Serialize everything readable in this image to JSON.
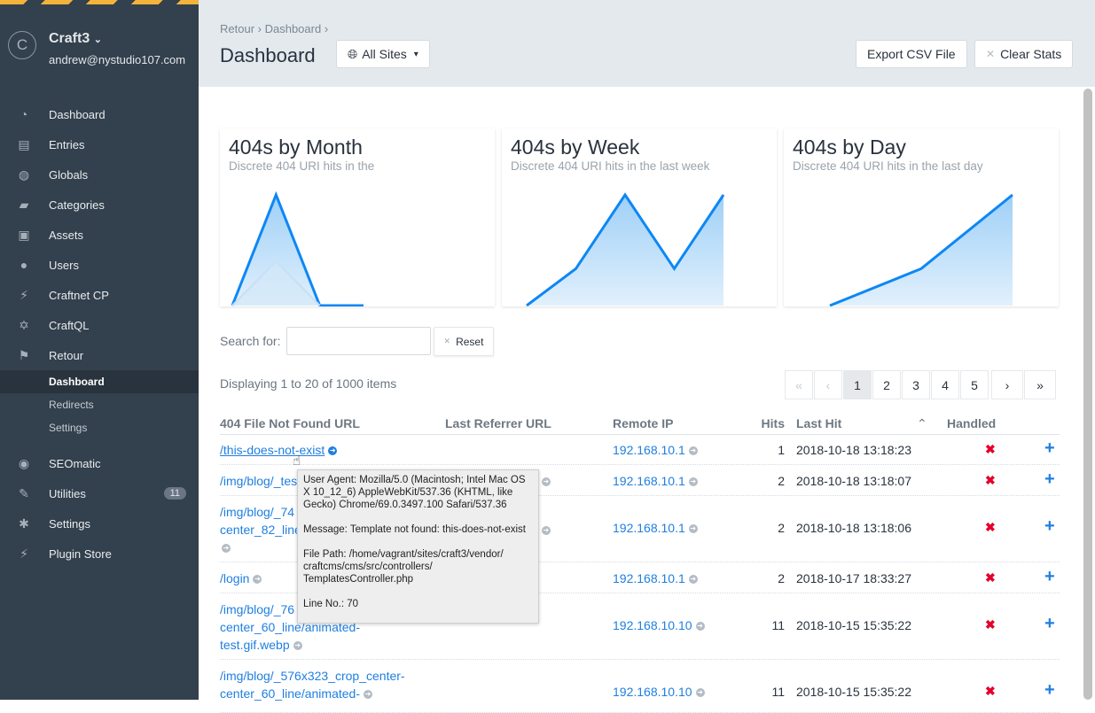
{
  "sidebar": {
    "site_name": "Craft3",
    "user_email": "andrew@nystudio107.com",
    "logo_letter": "C",
    "items": [
      {
        "label": "Dashboard",
        "icon": "gauge-icon"
      },
      {
        "label": "Entries",
        "icon": "newspaper-icon"
      },
      {
        "label": "Globals",
        "icon": "globe-icon"
      },
      {
        "label": "Categories",
        "icon": "folder-icon"
      },
      {
        "label": "Assets",
        "icon": "image-icon"
      },
      {
        "label": "Users",
        "icon": "users-icon"
      },
      {
        "label": "Craftnet CP",
        "icon": "plug-icon"
      },
      {
        "label": "CraftQL",
        "icon": "graphql-icon"
      },
      {
        "label": "Retour",
        "icon": "flag-icon"
      }
    ],
    "sub_items": [
      {
        "label": "Dashboard"
      },
      {
        "label": "Redirects"
      },
      {
        "label": "Settings"
      }
    ],
    "items2": [
      {
        "label": "SEOmatic",
        "icon": "seomatic-icon"
      },
      {
        "label": "Utilities",
        "icon": "wrench-icon",
        "badge": "11"
      },
      {
        "label": "Settings",
        "icon": "gear-icon"
      },
      {
        "label": "Plugin Store",
        "icon": "plug-icon"
      }
    ]
  },
  "header": {
    "breadcrumb": [
      "Retour",
      "Dashboard"
    ],
    "title": "Dashboard",
    "site_select": "All Sites",
    "export_label": "Export CSV File",
    "clear_label": "Clear Stats"
  },
  "chart_data": [
    {
      "type": "area",
      "title": "404s by Month",
      "subtitle": "Discrete 404 URI hits in the",
      "series": [
        {
          "values": [
            0,
            5,
            0,
            0
          ],
          "color": "#0d87f5"
        },
        {
          "values": [
            0,
            2,
            0
          ],
          "color": "#c9dff2"
        }
      ]
    },
    {
      "type": "area",
      "title": "404s by Week",
      "subtitle": "Discrete 404 URI hits in the last week",
      "series": [
        {
          "values": [
            0,
            1,
            3,
            1,
            3
          ],
          "color": "#0d87f5"
        }
      ]
    },
    {
      "type": "area",
      "title": "404s by Day",
      "subtitle": "Discrete 404 URI hits in the last day",
      "series": [
        {
          "values": [
            0,
            1,
            3
          ],
          "color": "#0d87f5"
        }
      ]
    }
  ],
  "search": {
    "label": "Search for:",
    "value": "",
    "reset_label": "Reset"
  },
  "display": "Displaying 1 to 20 of 1000 items",
  "pager": [
    "«",
    "‹",
    "1",
    "2",
    "3",
    "4",
    "5",
    "›",
    "»"
  ],
  "table": {
    "columns": [
      "404 File Not Found URL",
      "Last Referrer URL",
      "Remote IP",
      "Hits",
      "Last Hit",
      "Handled"
    ],
    "rows": [
      {
        "url": [
          "/this-does-not-exist"
        ],
        "ip": "192.168.10.1",
        "hits": "1",
        "last": "2018-10-18 13:18:23"
      },
      {
        "url": [
          "/img/blog/_tes"
        ],
        "url_tail": "/",
        "ip": "192.168.10.1",
        "hits": "2",
        "last": "2018-10-18 13:18:07"
      },
      {
        "url": [
          "/img/blog/_74",
          "center_82_line"
        ],
        "url_tail": "/",
        "ip": "192.168.10.1",
        "hits": "2",
        "last": "2018-10-18 13:18:06"
      },
      {
        "url": [
          "/login"
        ],
        "ip": "192.168.10.1",
        "hits": "2",
        "last": "2018-10-17 18:33:27"
      },
      {
        "url": [
          "/img/blog/_76",
          "center_60_line/animated-",
          "test.gif.webp"
        ],
        "ip": "192.168.10.10",
        "hits": "11",
        "last": "2018-10-15 15:35:22"
      },
      {
        "url": [
          "/img/blog/_576x323_crop_center-",
          "center_60_line/animated-"
        ],
        "ip": "192.168.10.10",
        "hits": "11",
        "last": "2018-10-15 15:35:22"
      }
    ]
  },
  "tooltip": {
    "user_agent": "User Agent: Mozilla/5.0 (Macintosh; Intel Mac OS X 10_12_6) AppleWebKit/537.36 (KHTML, like Gecko) Chrome/69.0.3497.100 Safari/537.36",
    "message": "Message: Template not found: this-does-not-exist",
    "file_path": "File Path: /home/vagrant/sites/craft3/vendor/ craftcms/cms/src/controllers/ TemplatesController.php",
    "line": "Line No.: 70"
  }
}
